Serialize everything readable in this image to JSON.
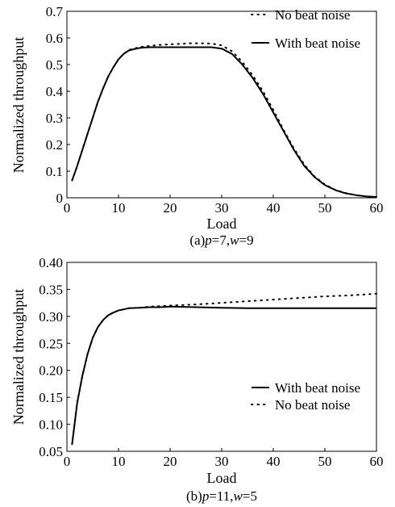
{
  "chart_data": [
    {
      "type": "line",
      "xlabel": "Load",
      "ylabel": "Normalized throughput",
      "caption": "(a)p=7,w=9",
      "caption_parts": [
        "(a)",
        "p",
        "=7,",
        "w",
        "=9"
      ],
      "xlim": [
        0,
        60
      ],
      "ylim": [
        0,
        0.7
      ],
      "xticks": [
        "0",
        "10",
        "20",
        "30",
        "40",
        "50",
        "60"
      ],
      "yticks": [
        "0",
        "0.1",
        "0.2",
        "0.3",
        "0.4",
        "0.5",
        "0.6",
        "0.7"
      ],
      "legend_position": "top-right",
      "grid": false,
      "series": [
        {
          "name": "No beat noise",
          "style": "dotted",
          "x": [
            1,
            2,
            3,
            4,
            5,
            6,
            7,
            8,
            9,
            10,
            11,
            12,
            13,
            14,
            15,
            16,
            18,
            20,
            22,
            24,
            26,
            28,
            30,
            32,
            34,
            36,
            38,
            40,
            42,
            44,
            46,
            48,
            50,
            52,
            54,
            56,
            58,
            60
          ],
          "y": [
            0.065,
            0.12,
            0.18,
            0.24,
            0.3,
            0.36,
            0.41,
            0.455,
            0.49,
            0.52,
            0.54,
            0.555,
            0.56,
            0.565,
            0.568,
            0.57,
            0.574,
            0.576,
            0.578,
            0.58,
            0.58,
            0.579,
            0.572,
            0.55,
            0.51,
            0.46,
            0.4,
            0.33,
            0.255,
            0.185,
            0.125,
            0.08,
            0.05,
            0.03,
            0.018,
            0.01,
            0.005,
            0.003
          ]
        },
        {
          "name": "With beat noise",
          "style": "solid",
          "x": [
            1,
            2,
            3,
            4,
            5,
            6,
            7,
            8,
            9,
            10,
            11,
            12,
            13,
            14,
            15,
            16,
            18,
            20,
            22,
            24,
            26,
            28,
            30,
            32,
            34,
            36,
            38,
            40,
            42,
            44,
            46,
            48,
            50,
            52,
            54,
            56,
            58,
            60
          ],
          "y": [
            0.065,
            0.12,
            0.18,
            0.24,
            0.3,
            0.36,
            0.41,
            0.455,
            0.49,
            0.52,
            0.54,
            0.553,
            0.558,
            0.562,
            0.564,
            0.565,
            0.565,
            0.565,
            0.565,
            0.565,
            0.565,
            0.565,
            0.56,
            0.54,
            0.5,
            0.45,
            0.39,
            0.32,
            0.25,
            0.18,
            0.12,
            0.078,
            0.048,
            0.029,
            0.017,
            0.01,
            0.005,
            0.003
          ]
        }
      ]
    },
    {
      "type": "line",
      "xlabel": "Load",
      "ylabel": "Normalized throughput",
      "caption": "(b)p=11,w=5",
      "caption_parts": [
        "(b)",
        "p",
        "=11,",
        "w",
        "=5"
      ],
      "xlim": [
        0,
        60
      ],
      "ylim": [
        0.05,
        0.4
      ],
      "xticks": [
        "0",
        "10",
        "20",
        "30",
        "40",
        "50",
        "60"
      ],
      "yticks": [
        "0.05",
        "0.10",
        "0.15",
        "0.20",
        "0.25",
        "0.30",
        "0.35",
        "0.40"
      ],
      "legend_position": "lower-right",
      "grid": false,
      "series": [
        {
          "name": "With beat noise",
          "style": "solid",
          "x": [
            1,
            2,
            3,
            4,
            5,
            6,
            7,
            8,
            9,
            10,
            11,
            12,
            14,
            16,
            18,
            20,
            25,
            30,
            35,
            40,
            45,
            50,
            55,
            60
          ],
          "y": [
            0.063,
            0.14,
            0.19,
            0.23,
            0.26,
            0.28,
            0.293,
            0.302,
            0.307,
            0.311,
            0.313,
            0.315,
            0.316,
            0.317,
            0.317,
            0.318,
            0.317,
            0.316,
            0.315,
            0.315,
            0.315,
            0.315,
            0.315,
            0.315
          ]
        },
        {
          "name": "No beat noise",
          "style": "dotted",
          "x": [
            1,
            2,
            3,
            4,
            5,
            6,
            7,
            8,
            9,
            10,
            11,
            12,
            14,
            16,
            18,
            20,
            25,
            30,
            35,
            40,
            45,
            50,
            55,
            60
          ],
          "y": [
            0.063,
            0.14,
            0.19,
            0.23,
            0.26,
            0.28,
            0.293,
            0.302,
            0.307,
            0.311,
            0.313,
            0.315,
            0.316,
            0.318,
            0.319,
            0.32,
            0.322,
            0.325,
            0.328,
            0.331,
            0.334,
            0.337,
            0.339,
            0.342
          ]
        }
      ]
    }
  ]
}
